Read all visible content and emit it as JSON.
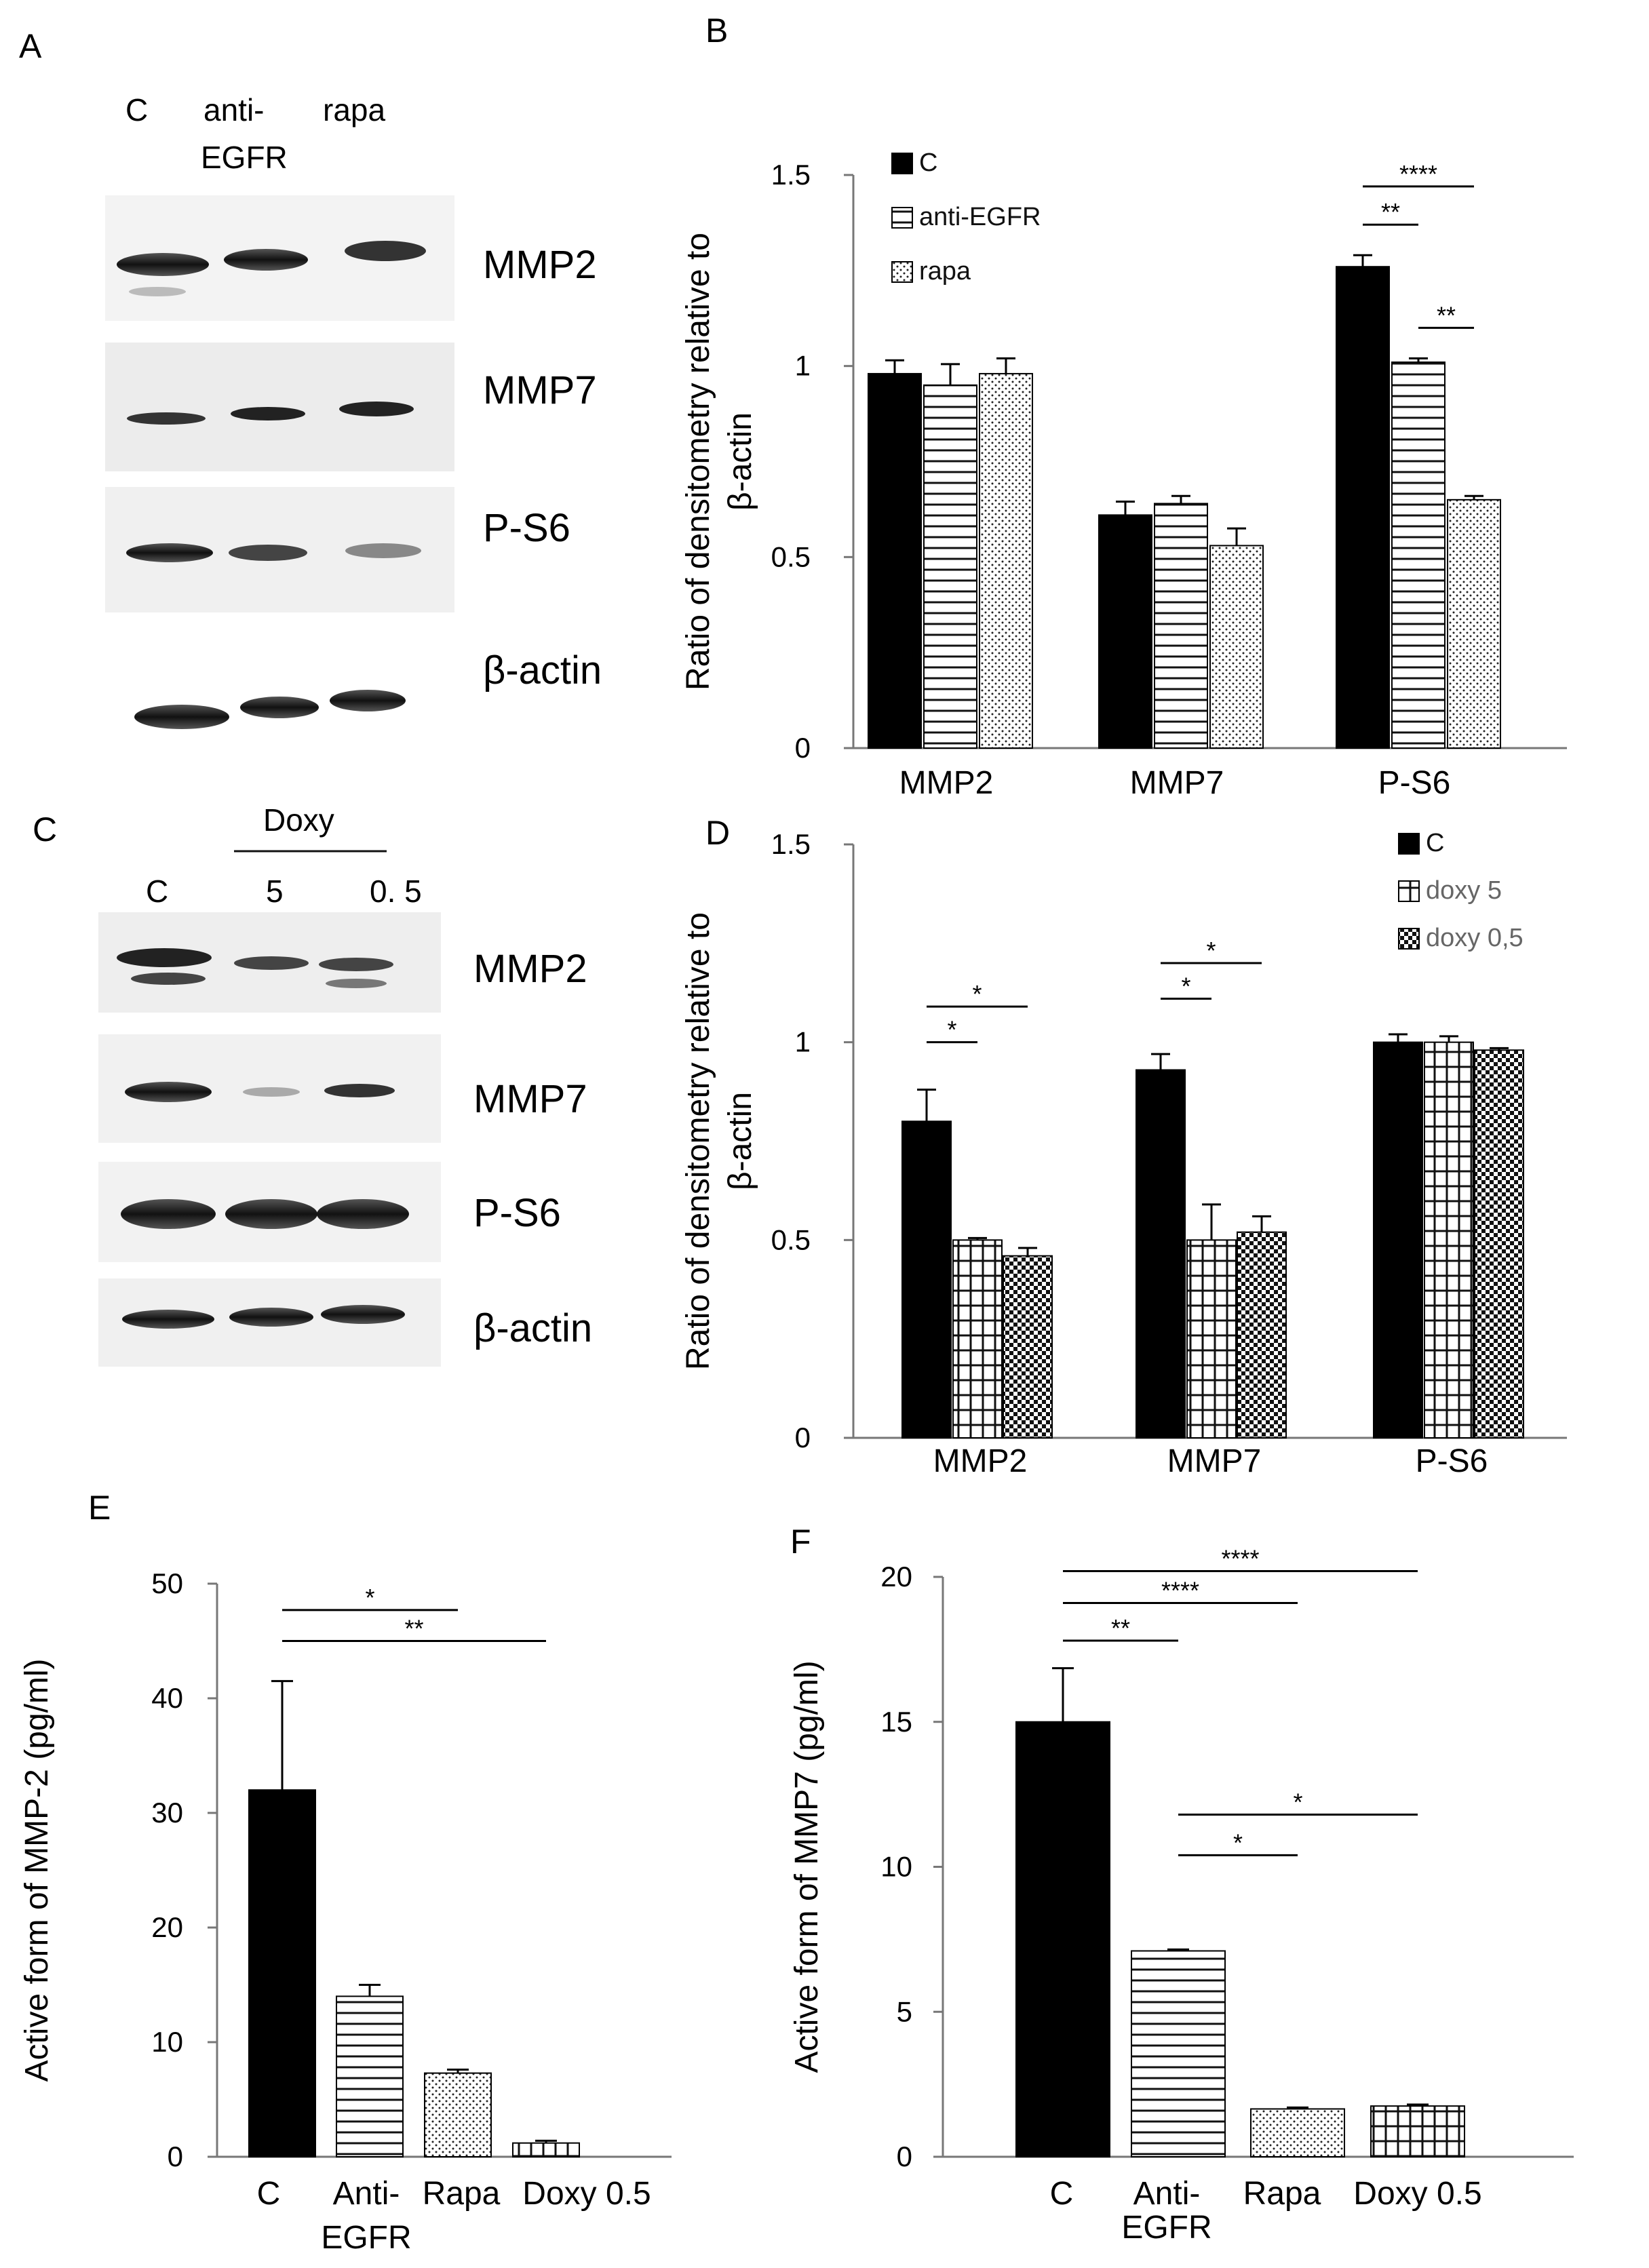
{
  "panels": {
    "A": "A",
    "B": "B",
    "C": "C",
    "D": "D",
    "E": "E",
    "F": "F"
  },
  "blotA": {
    "lanes": [
      "C",
      "anti-",
      "rapa"
    ],
    "lane2_line2": "EGFR",
    "rows": [
      "MMP2",
      "MMP7",
      "P-S6",
      "β-actin"
    ]
  },
  "blotC": {
    "group": "Doxy",
    "lanes": [
      "C",
      "5",
      "0. 5"
    ],
    "rows": [
      "MMP2",
      "MMP7",
      "P-S6",
      "β-actin"
    ]
  },
  "chart_data": [
    {
      "id": "B",
      "type": "bar",
      "categories": [
        "MMP2",
        "MMP7",
        "P-S6"
      ],
      "series": [
        {
          "name": "C",
          "values": [
            0.98,
            0.61,
            1.26
          ],
          "errors": [
            0.035,
            0.035,
            0.03
          ],
          "pattern": "solid"
        },
        {
          "name": "anti-EGFR",
          "values": [
            0.95,
            0.64,
            1.01
          ],
          "errors": [
            0.055,
            0.02,
            0.01
          ],
          "pattern": "hlines"
        },
        {
          "name": "rapa",
          "values": [
            0.98,
            0.53,
            0.65
          ],
          "errors": [
            0.04,
            0.045,
            0.01
          ],
          "pattern": "dots"
        }
      ],
      "ylabel_line1": "Ratio of densitometry relative to",
      "ylabel_line2": "β-actin",
      "yticks": [
        "0",
        "0.5",
        "1",
        "1.5"
      ],
      "ylim": [
        0,
        1.5
      ],
      "significance": [
        {
          "cat": 2,
          "from": 0,
          "to": 2,
          "label": "****",
          "level": 1.47
        },
        {
          "cat": 2,
          "from": 0,
          "to": 1,
          "label": "**",
          "level": 1.37
        },
        {
          "cat": 2,
          "from": 1,
          "to": 2,
          "label": "**",
          "level": 1.1
        }
      ]
    },
    {
      "id": "D",
      "type": "bar",
      "categories": [
        "MMP2",
        "MMP7",
        "P-S6"
      ],
      "series": [
        {
          "name": "C",
          "values": [
            0.8,
            0.93,
            1.0
          ],
          "errors": [
            0.08,
            0.04,
            0.02
          ],
          "pattern": "solid"
        },
        {
          "name": "doxy 5",
          "values": [
            0.5,
            0.5,
            1.0
          ],
          "errors": [
            0.005,
            0.09,
            0.015
          ],
          "pattern": "grid"
        },
        {
          "name": "doxy 0,5",
          "values": [
            0.46,
            0.52,
            0.98
          ],
          "errors": [
            0.02,
            0.04,
            0.005
          ],
          "pattern": "checker"
        }
      ],
      "ylabel_line1": "Ratio of densitometry relative to",
      "ylabel_line2": "β-actin",
      "yticks": [
        "0",
        "0.5",
        "1",
        "1.5"
      ],
      "ylim": [
        0,
        1.5
      ],
      "significance": [
        {
          "cat": 0,
          "from": 0,
          "to": 2,
          "label": "*",
          "level": 1.09
        },
        {
          "cat": 0,
          "from": 0,
          "to": 1,
          "label": "*",
          "level": 1.0
        },
        {
          "cat": 1,
          "from": 0,
          "to": 2,
          "label": "*",
          "level": 1.2
        },
        {
          "cat": 1,
          "from": 0,
          "to": 1,
          "label": "*",
          "level": 1.11
        }
      ]
    },
    {
      "id": "E",
      "type": "bar",
      "categories": [
        "C",
        "Anti-",
        "Rapa",
        "Doxy 0.5"
      ],
      "cat2_line2": "EGFR",
      "values": [
        32,
        14,
        7.3,
        1.2
      ],
      "errors": [
        9.5,
        1.0,
        0.3,
        0.2
      ],
      "patterns": [
        "solid",
        "hlines",
        "dots",
        "grid"
      ],
      "ylabel": "Active form of MMP-2 (pg/ml)",
      "yticks": [
        "0",
        "10",
        "20",
        "30",
        "40",
        "50"
      ],
      "ylim": [
        0,
        50
      ],
      "significance": [
        {
          "from": 0,
          "to": 2,
          "label": "*",
          "level": 47.7
        },
        {
          "from": 0,
          "to": 3,
          "label": "**",
          "level": 45.0
        }
      ]
    },
    {
      "id": "F",
      "type": "bar",
      "categories": [
        "C",
        "Anti-",
        "Rapa",
        "Doxy 0.5"
      ],
      "cat2_line2": "EGFR",
      "values": [
        15,
        7.1,
        1.65,
        1.75
      ],
      "errors": [
        1.85,
        0.05,
        0.05,
        0.05
      ],
      "patterns": [
        "solid",
        "hlines",
        "dots",
        "grid"
      ],
      "ylabel": "Active form of MMP7 (pg/ml)",
      "yticks": [
        "0",
        "5",
        "10",
        "15",
        "20"
      ],
      "ylim": [
        0,
        20
      ],
      "significance": [
        {
          "from": 0,
          "to": 3,
          "label": "****",
          "level": 20.2
        },
        {
          "from": 0,
          "to": 2,
          "label": "****",
          "level": 19.1
        },
        {
          "from": 0,
          "to": 1,
          "label": "**",
          "level": 17.8
        },
        {
          "from": 1,
          "to": 3,
          "label": "*",
          "level": 11.8
        },
        {
          "from": 1,
          "to": 2,
          "label": "*",
          "level": 10.4
        }
      ]
    }
  ]
}
